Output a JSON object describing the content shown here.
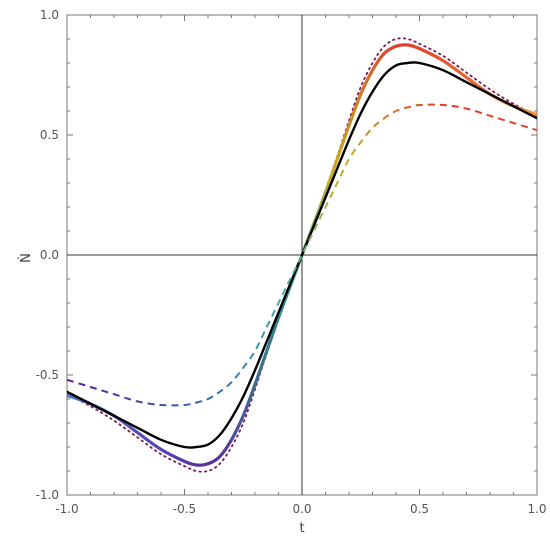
{
  "chart_data": {
    "type": "line",
    "title": "",
    "xlabel": "t",
    "ylabel": "Ṅ",
    "xlim": [
      -1.0,
      1.0
    ],
    "ylim": [
      -1.0,
      1.0
    ],
    "x_ticks": [
      -1.0,
      -0.5,
      0.0,
      0.5,
      1.0
    ],
    "y_ticks": [
      -1.0,
      -0.5,
      0.0,
      0.5,
      1.0
    ],
    "x_tick_labels": [
      "-1.0",
      "-0.5",
      "0.0",
      "0.5",
      "1.0"
    ],
    "y_tick_labels": [
      "-1.0",
      "-0.5",
      "0.0",
      "0.5",
      "1.0"
    ],
    "grid": false,
    "axes_through_origin": true,
    "x": [
      -1.0,
      -0.9,
      -0.8,
      -0.7,
      -0.6,
      -0.5,
      -0.45,
      -0.4,
      -0.35,
      -0.3,
      -0.25,
      -0.2,
      -0.15,
      -0.1,
      -0.05,
      0.0,
      0.05,
      0.1,
      0.15,
      0.2,
      0.25,
      0.3,
      0.35,
      0.4,
      0.45,
      0.5,
      0.6,
      0.7,
      0.8,
      0.9,
      1.0
    ],
    "series": [
      {
        "style": "dotted",
        "color": "#7a1a55",
        "values": [
          -0.58,
          -0.63,
          -0.69,
          -0.76,
          -0.83,
          -0.88,
          -0.9,
          -0.9,
          -0.87,
          -0.8,
          -0.7,
          -0.56,
          -0.41,
          -0.27,
          -0.13,
          0.0,
          0.13,
          0.27,
          0.41,
          0.56,
          0.7,
          0.8,
          0.87,
          0.9,
          0.9,
          0.88,
          0.83,
          0.76,
          0.69,
          0.63,
          0.58
        ]
      },
      {
        "style": "solid-gradient",
        "color_range": [
          "#4a78d8",
          "#5a2a9e",
          "#2a9a8a",
          "#c8b020",
          "#e03a2a",
          "#f09030"
        ],
        "values": [
          -0.585,
          -0.62,
          -0.67,
          -0.74,
          -0.81,
          -0.86,
          -0.875,
          -0.87,
          -0.84,
          -0.77,
          -0.67,
          -0.54,
          -0.4,
          -0.26,
          -0.13,
          0.0,
          0.13,
          0.26,
          0.4,
          0.54,
          0.67,
          0.77,
          0.84,
          0.87,
          0.875,
          0.86,
          0.81,
          0.74,
          0.67,
          0.62,
          0.585
        ]
      },
      {
        "style": "solid",
        "color": "#000000",
        "values": [
          -0.57,
          -0.62,
          -0.67,
          -0.72,
          -0.77,
          -0.8,
          -0.8,
          -0.79,
          -0.75,
          -0.68,
          -0.59,
          -0.48,
          -0.36,
          -0.24,
          -0.12,
          0.0,
          0.12,
          0.24,
          0.36,
          0.48,
          0.59,
          0.68,
          0.75,
          0.79,
          0.8,
          0.8,
          0.77,
          0.72,
          0.67,
          0.62,
          0.57
        ]
      },
      {
        "style": "dashed-gradient",
        "color_range": [
          "#5a1aa0",
          "#2a7ab8",
          "#5ab0a0",
          "#c8b020",
          "#e03a2a"
        ],
        "values": [
          -0.52,
          -0.55,
          -0.58,
          -0.61,
          -0.625,
          -0.625,
          -0.615,
          -0.6,
          -0.57,
          -0.53,
          -0.47,
          -0.4,
          -0.3,
          -0.2,
          -0.1,
          0.0,
          0.1,
          0.2,
          0.3,
          0.4,
          0.47,
          0.53,
          0.57,
          0.6,
          0.615,
          0.625,
          0.625,
          0.61,
          0.58,
          0.55,
          0.52
        ]
      }
    ]
  }
}
